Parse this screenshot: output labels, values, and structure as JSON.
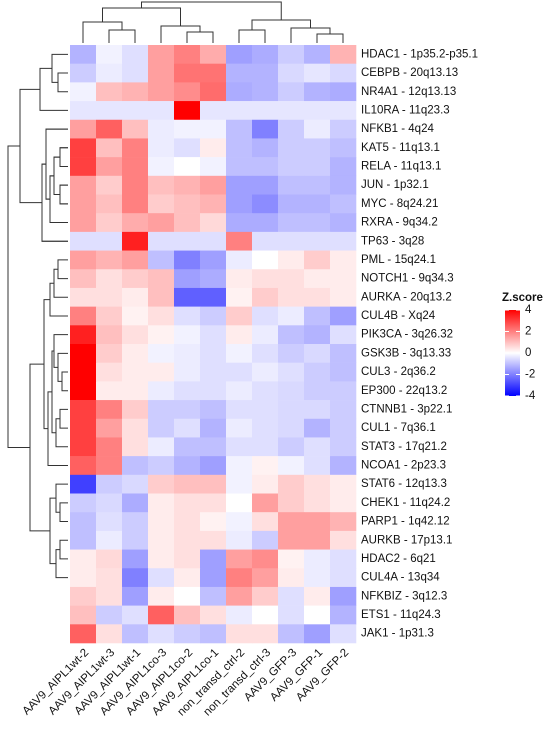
{
  "chart_data": {
    "type": "heatmap",
    "columns": [
      "AAV9_AIPL1wt-2",
      "AAV9_AIPL1wt-3",
      "AAV9_AIPL1wt-1",
      "AAV9_AIPL1co-3",
      "AAV9_AIPL1co-2",
      "AAV9_AIPL1co-1",
      "non_transd_ctrl-2",
      "non_transd_ctrl-3",
      "AAV9_GFP-3",
      "AAV9_GFP-1",
      "AAV9_GFP-2"
    ],
    "rows": [
      "HDAC1 - 1p35.2-p35.1",
      "CEBPB - 20q13.13",
      "NR4A1 - 12q13.13",
      "IL10RA - 11q23.3",
      "NFKB1 - 4q24",
      "KAT5 - 11q13.1",
      "RELA - 11q13.1",
      "JUN - 1p32.1",
      "MYC - 8q24.21",
      "RXRA - 9q34.2",
      "TP63 - 3q28",
      "PML - 15q24.1",
      "NOTCH1 - 9q34.3",
      "AURKA - 20q13.2",
      "CUL4B - Xq24",
      "PIK3CA - 3q26.32",
      "GSK3B - 3q13.33",
      "CUL3 - 2q36.2",
      "EP300 - 22q13.2",
      "CTNNB1 - 3p22.1",
      "CUL1 - 7q36.1",
      "STAT3 - 17q21.2",
      "NCOA1 - 2p23.3",
      "STAT6 - 12q13.3",
      "CHEK1 - 11q24.2",
      "PARP1 - 1q42.12",
      "AURKB - 17p13.1",
      "HDAC2 - 6q21",
      "CUL4A - 13q34",
      "NFKBIZ - 3q12.3",
      "ETS1 - 11q24.3",
      "JAK1 - 1p31.3"
    ],
    "values": [
      [
        -1.2,
        -0.2,
        -0.5,
        1.5,
        2,
        1.3,
        -1.5,
        -1.3,
        -0.8,
        -1.2,
        1.2
      ],
      [
        -0.8,
        -0.3,
        -0.5,
        1.5,
        2.2,
        2.2,
        -1.2,
        -1.2,
        -0.6,
        -0.4,
        -0.6
      ],
      [
        -0.2,
        1,
        1.2,
        1.5,
        1.8,
        2.3,
        -1.3,
        -1.2,
        -0.8,
        -1.2,
        -1.3
      ],
      [
        -0.4,
        -0.4,
        -0.4,
        -0.4,
        4,
        -0.4,
        -0.4,
        -0.4,
        -0.4,
        -0.4,
        -0.4
      ],
      [
        1.5,
        2.5,
        1,
        -0.3,
        -0.2,
        -0.2,
        -1,
        -2,
        -0.8,
        -0.3,
        -0.8
      ],
      [
        3,
        1,
        2,
        -0.3,
        -0.5,
        0.3,
        -1,
        -1.2,
        -0.8,
        -0.8,
        -1
      ],
      [
        3,
        1.5,
        2,
        -0.2,
        0,
        -0.2,
        -1,
        -1,
        -0.8,
        -0.8,
        -1.2
      ],
      [
        1.5,
        0.8,
        2,
        1,
        1.2,
        1.5,
        -1.5,
        -1.5,
        -1,
        -1,
        -1.2
      ],
      [
        1.5,
        1,
        2,
        0.8,
        1,
        1.2,
        -1.5,
        -1.8,
        -1.2,
        -1.2,
        -1
      ],
      [
        1.5,
        0.8,
        1.3,
        1.5,
        1,
        0.6,
        -1.3,
        -1.3,
        -1,
        -1,
        -1.2
      ],
      [
        -0.5,
        -0.5,
        3.5,
        -0.5,
        -0.5,
        -0.5,
        2,
        -0.5,
        -0.5,
        -0.5,
        -0.5
      ],
      [
        1.5,
        1.2,
        1.5,
        -1,
        -2,
        -1.5,
        -0.3,
        0,
        0.3,
        0.8,
        0.3
      ],
      [
        1,
        0.5,
        0.8,
        1,
        -1.5,
        -1.3,
        0.3,
        0.5,
        0.5,
        0.3,
        0.3
      ],
      [
        0.5,
        0.5,
        0.3,
        1,
        -2.5,
        -2.5,
        0.2,
        0.8,
        0.5,
        0.5,
        0.3
      ],
      [
        2,
        0.8,
        0.2,
        0.5,
        -0.5,
        -0.8,
        0.8,
        -0.5,
        -0.3,
        -1,
        -1.5
      ],
      [
        3.5,
        1,
        0.5,
        0.2,
        -0.2,
        -0.5,
        0.3,
        -0.3,
        -1,
        -1.2,
        -0.5
      ],
      [
        4,
        0.8,
        0.3,
        -0.2,
        -0.3,
        -0.5,
        -0.2,
        -0.5,
        -0.8,
        -0.6,
        -1
      ],
      [
        4,
        0.5,
        0.3,
        0.3,
        -0.3,
        -0.5,
        -0.5,
        -0.3,
        -0.5,
        -0.8,
        -1
      ],
      [
        4,
        0.3,
        0.3,
        -0.3,
        -0.5,
        -0.5,
        -0.3,
        -0.5,
        -0.6,
        -0.8,
        -0.8
      ],
      [
        3,
        2,
        0.8,
        -0.8,
        -0.8,
        -1,
        -0.5,
        -0.5,
        -0.6,
        -0.6,
        -0.8
      ],
      [
        3,
        1.5,
        0.5,
        -0.8,
        -0.5,
        -1.2,
        -0.3,
        -0.5,
        -0.6,
        -1.2,
        -0.8
      ],
      [
        3,
        2,
        0.5,
        -0.3,
        -1,
        -1,
        -0.5,
        -0.5,
        -0.8,
        -0.5,
        -0.8
      ],
      [
        2.5,
        2,
        -1,
        -0.8,
        -1.2,
        -1.5,
        -0.2,
        0.2,
        -0.2,
        -0.5,
        -1.2
      ],
      [
        -3,
        -0.8,
        -0.6,
        0.8,
        1,
        1,
        -0.2,
        0.3,
        0.8,
        0.5,
        0.3
      ],
      [
        -0.8,
        -0.6,
        -1.3,
        0.3,
        0.5,
        0.5,
        0,
        1.5,
        0.8,
        0.5,
        0.3
      ],
      [
        -1,
        -0.5,
        -0.8,
        0.3,
        0.5,
        0.2,
        -0.2,
        0.5,
        1.5,
        1.5,
        1.2
      ],
      [
        -1,
        -0.3,
        -0.8,
        0.3,
        0.5,
        0.5,
        -0.3,
        -0.8,
        1.5,
        1.5,
        0.5
      ],
      [
        0.3,
        0.6,
        -1.5,
        0.3,
        0.5,
        -1.5,
        1.5,
        1.8,
        0.2,
        -0.3,
        -0.5
      ],
      [
        0.3,
        0.5,
        -2,
        -0.5,
        0.3,
        -1.5,
        2,
        1.5,
        0.3,
        -0.3,
        -0.5
      ],
      [
        0.8,
        0.5,
        -1.5,
        0.3,
        0,
        -1,
        1.5,
        0.8,
        -0.5,
        0.3,
        -1.5
      ],
      [
        1,
        -0.8,
        -0.5,
        2.5,
        1,
        0.5,
        -0.3,
        0,
        -0.5,
        0,
        -1.2
      ],
      [
        2.5,
        0.5,
        -1,
        -0.5,
        -0.8,
        -1,
        0.5,
        0.5,
        -1,
        -1.5,
        -0.5
      ]
    ],
    "colors": [
      "#0000ff",
      "#ffffff",
      "#ff0000"
    ],
    "zlim": [
      -4,
      4
    ],
    "legend_title": "Z.score",
    "zticks": [
      4,
      2,
      0,
      -2,
      -4
    ]
  }
}
